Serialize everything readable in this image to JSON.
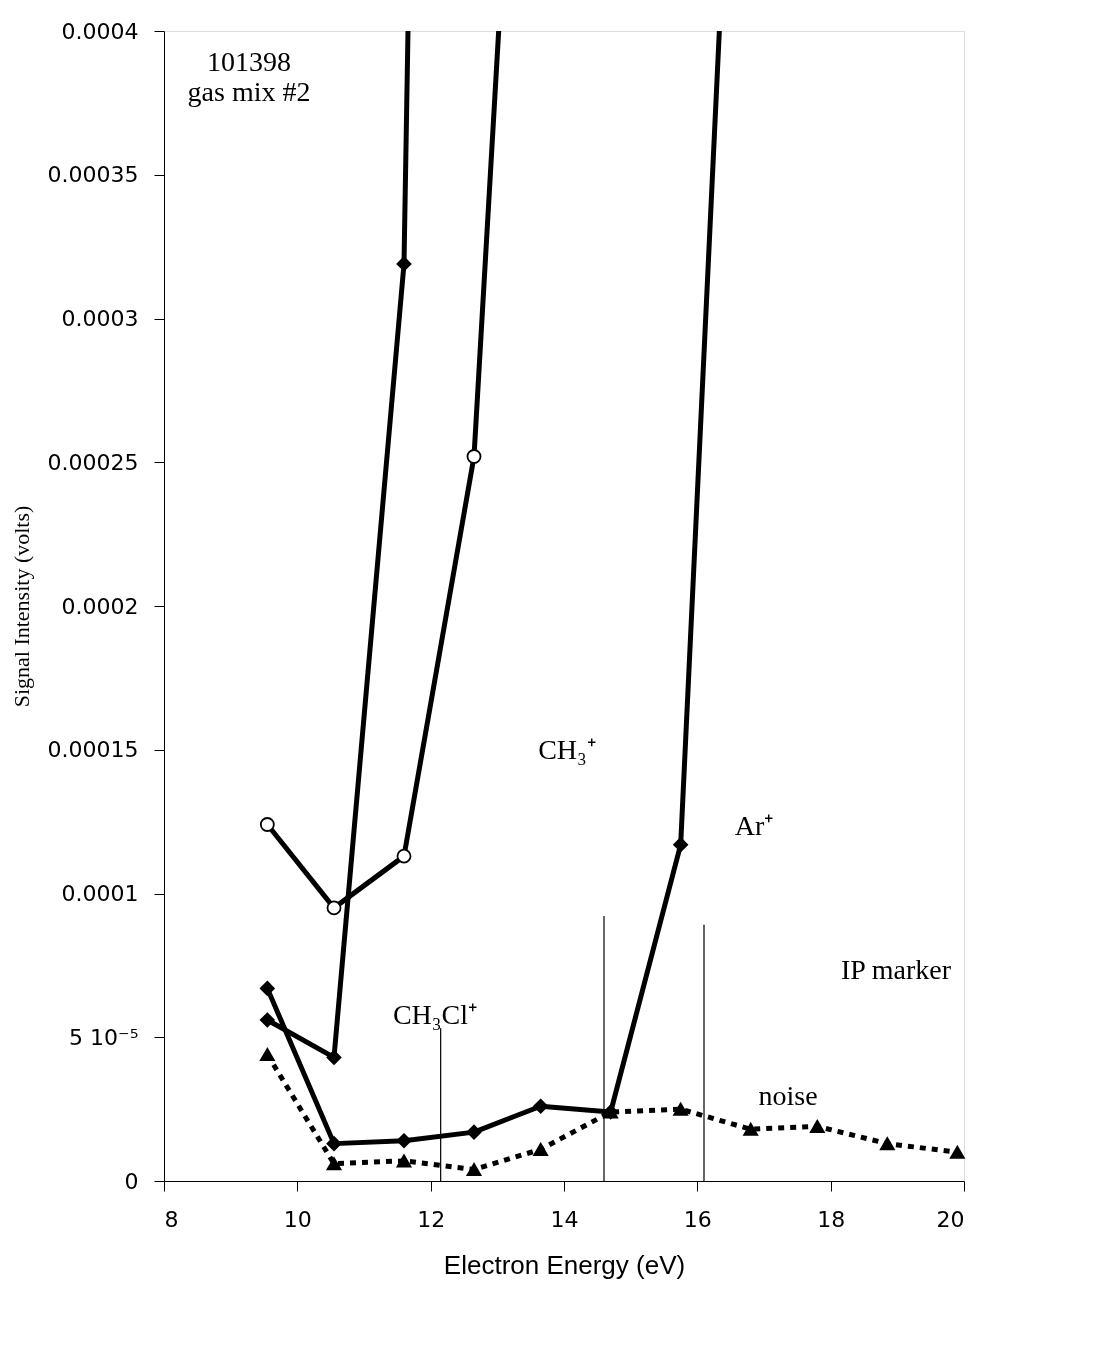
{
  "chart_data": {
    "type": "line",
    "xlabel": "Electron Energy (eV)",
    "ylabel": "Signal Intensity (volts)",
    "xlim": [
      8,
      20
    ],
    "xticks": [
      8,
      10,
      12,
      14,
      16,
      18,
      20
    ],
    "ylim": [
      0,
      0.0004
    ],
    "yticks": [
      0,
      {
        "value": 5e-05,
        "label": "5 10⁻⁵"
      },
      0.0001,
      0.00015,
      0.0002,
      0.00025,
      0.0003,
      0.00035,
      0.0004
    ],
    "grid": false,
    "series": [
      {
        "color": "#000000",
        "marker": "diamond",
        "line_style": "solid",
        "x": [
          9.55,
          10.55,
          11.6,
          11.66
        ],
        "values": [
          5.6e-05,
          4.3e-05,
          0.000319,
          0.0004
        ]
      },
      {
        "color": "#000000",
        "marker": "circle",
        "line_style": "solid",
        "x": [
          9.55,
          10.55,
          11.6,
          12.65,
          13.02
        ],
        "values": [
          0.000124,
          9.5e-05,
          0.000113,
          0.000252,
          0.0004
        ]
      },
      {
        "color": "#000000",
        "marker": "diamond",
        "line_style": "solid",
        "x": [
          9.55,
          10.55,
          11.6,
          12.65,
          13.65,
          14.7,
          15.75,
          16.33
        ],
        "values": [
          6.7e-05,
          1.3e-05,
          1.4e-05,
          1.7e-05,
          2.6e-05,
          2.4e-05,
          0.000117,
          0.0004
        ]
      },
      {
        "color": "#000000",
        "marker": "triangle",
        "line_style": "dotted",
        "x": [
          9.55,
          10.55,
          11.6,
          12.65,
          13.65,
          14.7,
          15.75,
          16.8,
          17.8,
          18.85,
          19.9
        ],
        "values": [
          4.4e-05,
          6e-06,
          7e-06,
          4e-06,
          1.1e-05,
          2.4e-05,
          2.5e-05,
          1.8e-05,
          1.9e-05,
          1.3e-05,
          1e-05
        ]
      },
      {
        "color": "#000000",
        "marker": "none",
        "line_style": "solid",
        "x": [
          12.15,
          12.15
        ],
        "values": [
          0,
          5.3e-05
        ]
      },
      {
        "color": "#000000",
        "marker": "none",
        "line_style": "solid",
        "x": [
          14.6,
          14.6
        ],
        "values": [
          0,
          9.2e-05
        ]
      },
      {
        "color": "#000000",
        "marker": "none",
        "line_style": "solid",
        "x": [
          16.1,
          16.1
        ],
        "values": [
          0,
          8.9e-05
        ]
      }
    ],
    "annotations": [
      "101398\ngas mix #2",
      "CH₃⁺",
      "CH₃Cl⁺",
      "Ar⁺",
      "IP marker",
      "noise"
    ]
  }
}
